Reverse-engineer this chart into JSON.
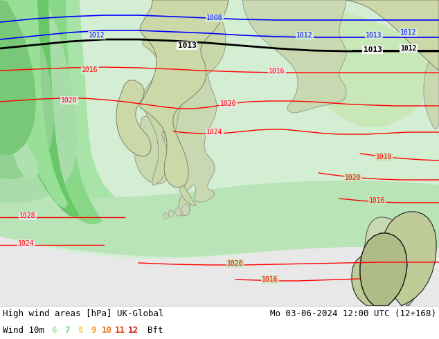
{
  "title_left": "High wind areas [hPa] UK-Global",
  "title_right": "Mo 03-06-2024 12:00 UTC (12+168)",
  "wind_label": "Wind 10m",
  "bft_numbers": [
    "6",
    "7",
    "8",
    "9",
    "10",
    "11",
    "12"
  ],
  "bft_colors": [
    "#a0e8a0",
    "#78d878",
    "#f0d060",
    "#f0a030",
    "#f07820",
    "#e04010",
    "#cc2020"
  ],
  "bft_suffix": "Bft",
  "bg_color": "#f0f0f0",
  "sea_color": "#e8e8e8",
  "font_family": "monospace",
  "label_fontsize": 9,
  "title_fontsize": 9
}
